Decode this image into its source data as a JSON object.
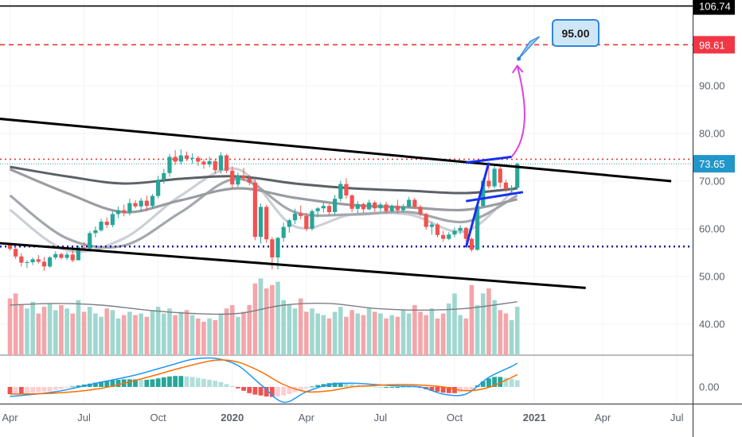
{
  "chart_data": {
    "type": "candlestick",
    "instrument_interval": "weekly",
    "price_axis": {
      "ticks": [
        "40.00",
        "50.00",
        "60.00",
        "70.00",
        "80.00",
        "90.00"
      ],
      "tick_values": [
        40,
        50,
        60,
        70,
        80,
        90
      ],
      "ylim": [
        33.5,
        108
      ]
    },
    "macd_axis": {
      "ticks": [
        "0.00"
      ]
    },
    "time_axis": {
      "labels": [
        "Apr",
        "Jul",
        "Oct",
        "2020",
        "Apr",
        "Jul",
        "Oct",
        "2021",
        "Apr",
        "Jul"
      ],
      "bold": [
        false,
        false,
        false,
        true,
        false,
        false,
        false,
        true,
        false,
        false
      ],
      "week_index": [
        0,
        13,
        26,
        39,
        52,
        65,
        78,
        92,
        104,
        117
      ]
    },
    "price_tags": [
      {
        "label": "106.74",
        "value": 106.74,
        "line_style": "solid",
        "line_color": "#000000",
        "tag_bg": "#000000",
        "tag_fg": "#ffffff"
      },
      {
        "label": "98.61",
        "value": 98.61,
        "line_style": "dashed",
        "line_color": "#e53935",
        "tag_bg": "#f23645",
        "tag_fg": "#ffffff"
      },
      {
        "label": "73.65",
        "value": 73.65,
        "line_style": "dotted-teal",
        "line_color": "#26a69a",
        "tag_bg": "#2196c8",
        "tag_fg": "#ffffff"
      }
    ],
    "levels": [
      {
        "value": 74.6,
        "style": "dotted",
        "color": "#e53935"
      },
      {
        "value": 56.3,
        "style": "dotted",
        "color": "#1a1aa8"
      }
    ],
    "target_callout": {
      "label": "95.00",
      "value": 95.0,
      "week": 89
    },
    "candles": [
      [
        56.6,
        56.8,
        55.4,
        55.8
      ],
      [
        55.8,
        56.9,
        53.7,
        54.2
      ],
      [
        54.2,
        54.9,
        52.1,
        52.9
      ],
      [
        52.9,
        53.4,
        51.8,
        53.0
      ],
      [
        53.0,
        54.0,
        52.4,
        53.6
      ],
      [
        53.6,
        54.5,
        52.7,
        53.1
      ],
      [
        53.1,
        54.1,
        51.2,
        52.1
      ],
      [
        52.1,
        54.3,
        51.8,
        54.0
      ],
      [
        54.0,
        55.3,
        53.5,
        54.7
      ],
      [
        54.7,
        55.0,
        53.6,
        53.9
      ],
      [
        53.9,
        55.1,
        53.4,
        54.6
      ],
      [
        54.6,
        55.6,
        53.0,
        53.4
      ],
      [
        53.4,
        56.5,
        53.4,
        56.1
      ],
      [
        56.1,
        57.2,
        55.4,
        55.9
      ],
      [
        55.9,
        59.5,
        55.5,
        59.1
      ],
      [
        59.1,
        60.5,
        58.2,
        59.7
      ],
      [
        59.7,
        62.1,
        59.4,
        61.5
      ],
      [
        61.5,
        62.4,
        60.2,
        60.8
      ],
      [
        60.8,
        63.6,
        60.3,
        63.1
      ],
      [
        63.1,
        64.7,
        62.2,
        63.9
      ],
      [
        63.9,
        65.1,
        62.6,
        63.4
      ],
      [
        63.4,
        66.3,
        62.8,
        65.4
      ],
      [
        65.4,
        66.0,
        64.3,
        64.7
      ],
      [
        64.7,
        66.5,
        63.6,
        65.9
      ],
      [
        65.9,
        67.0,
        63.7,
        64.8
      ],
      [
        64.8,
        67.3,
        64.3,
        66.9
      ],
      [
        66.9,
        71.1,
        66.4,
        70.3
      ],
      [
        70.3,
        72.6,
        69.5,
        71.7
      ],
      [
        71.7,
        75.7,
        70.9,
        75.1
      ],
      [
        75.1,
        76.5,
        73.4,
        74.1
      ],
      [
        74.1,
        76.7,
        73.5,
        75.4
      ],
      [
        75.4,
        76.2,
        74.2,
        74.7
      ],
      [
        74.7,
        75.8,
        73.6,
        74.9
      ],
      [
        74.9,
        75.3,
        73.2,
        74.1
      ],
      [
        74.1,
        74.6,
        72.6,
        73.5
      ],
      [
        73.5,
        75.1,
        72.9,
        74.2
      ],
      [
        74.2,
        74.6,
        71.6,
        72.3
      ],
      [
        72.3,
        76.1,
        71.6,
        75.4
      ],
      [
        75.4,
        75.7,
        71.7,
        72.2
      ],
      [
        72.2,
        73.1,
        68.5,
        69.3
      ],
      [
        69.3,
        71.8,
        68.8,
        71.2
      ],
      [
        71.2,
        72.8,
        70.1,
        70.6
      ],
      [
        70.6,
        71.3,
        69.1,
        69.7
      ],
      [
        69.7,
        70.4,
        57.6,
        58.3
      ],
      [
        58.3,
        65.3,
        56.9,
        64.6
      ],
      [
        64.6,
        65.0,
        57.1,
        57.8
      ],
      [
        57.8,
        58.3,
        51.5,
        54.0
      ],
      [
        54.0,
        58.3,
        51.5,
        58.1
      ],
      [
        58.1,
        61.3,
        57.3,
        60.4
      ],
      [
        60.4,
        62.1,
        59.2,
        61.8
      ],
      [
        61.8,
        64.2,
        61.0,
        63.2
      ],
      [
        63.2,
        64.9,
        62.0,
        62.7
      ],
      [
        62.7,
        63.3,
        59.5,
        60.0
      ],
      [
        60.0,
        64.1,
        59.6,
        63.7
      ],
      [
        63.7,
        64.6,
        62.4,
        64.3
      ],
      [
        64.3,
        65.6,
        63.4,
        64.8
      ],
      [
        64.8,
        65.2,
        62.8,
        63.5
      ],
      [
        63.5,
        67.1,
        62.9,
        66.3
      ],
      [
        66.3,
        70.1,
        65.7,
        69.4
      ],
      [
        69.4,
        70.6,
        66.3,
        67.0
      ],
      [
        67.0,
        67.3,
        63.5,
        64.2
      ],
      [
        64.2,
        65.8,
        63.2,
        65.2
      ],
      [
        65.2,
        65.5,
        63.4,
        64.1
      ],
      [
        64.1,
        66.1,
        63.9,
        65.5
      ],
      [
        65.5,
        65.9,
        63.6,
        64.3
      ],
      [
        64.3,
        65.6,
        63.6,
        65.1
      ],
      [
        65.1,
        65.7,
        63.2,
        63.7
      ],
      [
        63.7,
        65.1,
        63.5,
        64.8
      ],
      [
        64.8,
        66.1,
        63.2,
        63.9
      ],
      [
        63.9,
        65.2,
        63.4,
        64.6
      ],
      [
        64.6,
        66.7,
        64.4,
        66.1
      ],
      [
        66.1,
        66.5,
        64.2,
        64.6
      ],
      [
        64.6,
        65.0,
        62.7,
        63.1
      ],
      [
        63.1,
        63.4,
        59.8,
        60.4
      ],
      [
        60.4,
        61.5,
        58.8,
        60.9
      ],
      [
        60.9,
        61.2,
        58.2,
        58.7
      ],
      [
        58.7,
        59.6,
        57.3,
        57.9
      ],
      [
        57.9,
        59.3,
        57.6,
        58.8
      ],
      [
        58.8,
        60.3,
        58.2,
        59.6
      ],
      [
        59.6,
        60.8,
        58.9,
        60.2
      ],
      [
        60.2,
        60.4,
        57.3,
        57.9
      ],
      [
        57.9,
        58.2,
        55.2,
        55.6
      ],
      [
        55.6,
        65.4,
        55.4,
        64.8
      ],
      [
        64.8,
        70.6,
        64.6,
        70.1
      ],
      [
        70.1,
        73.9,
        68.4,
        68.9
      ],
      [
        68.9,
        73.2,
        68.5,
        72.6
      ],
      [
        72.6,
        73.1,
        68.6,
        69.7
      ],
      [
        69.7,
        70.3,
        67.7,
        68.3
      ],
      [
        68.3,
        69.2,
        67.6,
        68.6
      ],
      [
        68.6,
        73.9,
        68.2,
        73.6
      ]
    ],
    "moving_averages": [
      {
        "color": "#ccd0d6",
        "weeks": [
          0,
          10,
          20,
          30,
          40,
          50,
          60,
          70,
          80,
          89
        ],
        "values": [
          64.0,
          55.5,
          58.0,
          67.0,
          72.5,
          60.5,
          63.0,
          63.0,
          59.5,
          69.0
        ]
      },
      {
        "color": "#a4a7ad",
        "weeks": [
          0,
          10,
          20,
          30,
          40,
          50,
          60,
          70,
          80,
          89
        ],
        "values": [
          67.0,
          58.0,
          56.5,
          63.5,
          70.5,
          63.5,
          63.0,
          63.5,
          61.5,
          67.0
        ]
      },
      {
        "color": "#9a9ca1",
        "weeks": [
          0,
          10,
          20,
          30,
          40,
          50,
          60,
          70,
          80,
          89
        ],
        "values": [
          72.5,
          67.5,
          63.5,
          66.0,
          68.5,
          66.5,
          65.0,
          64.5,
          64.0,
          66.2
        ]
      },
      {
        "color": "#5d6066",
        "weeks": [
          0,
          10,
          20,
          30,
          40,
          50,
          60,
          70,
          80,
          89
        ],
        "values": [
          73.0,
          71.0,
          69.5,
          70.5,
          71.0,
          69.5,
          68.5,
          68.0,
          67.5,
          68.5
        ]
      }
    ],
    "trendlines": [
      {
        "name": "channel-top",
        "color": "#000000",
        "points": [
          [
            -2,
            83.1
          ],
          [
            116,
            70.0
          ]
        ]
      },
      {
        "name": "channel-bottom",
        "color": "#000000",
        "points": [
          [
            -2,
            57.0
          ],
          [
            101,
            47.6
          ]
        ]
      }
    ],
    "flag_pattern": {
      "color": "#1530f0",
      "pole": [
        [
          80,
          56.1
        ],
        [
          84,
          73.9
        ]
      ],
      "upper": [
        [
          80,
          73.9
        ],
        [
          88,
          75.1
        ]
      ],
      "lower": [
        [
          80,
          65.8
        ],
        [
          90,
          67.7
        ]
      ],
      "projection_color": "#e040e0",
      "projection": [
        [
          88,
          75.1
        ],
        [
          92,
          80.5
        ],
        [
          89,
          94.2
        ]
      ]
    },
    "volume": {
      "values": [
        34,
        37,
        30,
        28,
        32,
        25,
        29,
        31,
        27,
        30,
        28,
        25,
        33,
        26,
        29,
        25,
        23,
        28,
        27,
        22,
        24,
        26,
        24,
        25,
        23,
        27,
        29,
        25,
        28,
        24,
        26,
        27,
        24,
        22,
        20,
        22,
        21,
        25,
        28,
        30,
        23,
        26,
        30,
        43,
        46,
        40,
        42,
        44,
        33,
        30,
        28,
        34,
        26,
        28,
        25,
        24,
        22,
        26,
        29,
        23,
        27,
        25,
        24,
        28,
        26,
        25,
        22,
        24,
        23,
        27,
        25,
        30,
        26,
        24,
        28,
        22,
        25,
        31,
        37,
        24,
        22,
        42,
        30,
        37,
        40,
        33,
        27,
        25,
        21,
        29
      ],
      "ma_weeks": [
        0,
        8,
        16,
        24,
        32,
        40,
        48,
        56,
        64,
        72,
        80,
        89
      ],
      "ma_values": [
        30,
        31,
        30,
        27,
        25,
        25,
        30,
        31,
        28,
        27,
        28,
        32
      ]
    },
    "macd": {
      "histogram": [
        -1.5,
        -1.4,
        -1.4,
        -1.3,
        -1.2,
        -1.1,
        -1.0,
        -0.9,
        -0.6,
        -0.4,
        -0.1,
        0.1,
        0.3,
        0.5,
        0.7,
        0.9,
        1.1,
        1.3,
        1.4,
        1.5,
        1.6,
        1.6,
        1.6,
        1.5,
        1.5,
        1.6,
        1.8,
        2.0,
        2.2,
        2.3,
        2.3,
        2.2,
        2.1,
        1.9,
        1.7,
        1.5,
        1.3,
        1.0,
        0.6,
        0.2,
        -0.3,
        -0.8,
        -1.3,
        -1.6,
        -1.8,
        -2.0,
        -2.1,
        -2.0,
        -1.8,
        -1.5,
        -1.1,
        -0.7,
        -0.3,
        0.1,
        0.4,
        0.6,
        0.8,
        0.9,
        0.9,
        0.8,
        0.6,
        0.4,
        0.3,
        0.2,
        0.1,
        0.0,
        0.0,
        0.0,
        0.0,
        0.1,
        0.1,
        0.0,
        -0.2,
        -0.5,
        -0.8,
        -1.0,
        -1.2,
        -1.3,
        -1.3,
        -1.1,
        -0.9,
        -0.6,
        0.3,
        1.2,
        1.8,
        2.1,
        2.1,
        1.9,
        1.7,
        1.4
      ],
      "macd_weeks": [
        0,
        8,
        16,
        22,
        28,
        32,
        36,
        40,
        44,
        48,
        52,
        56,
        60,
        64,
        68,
        72,
        76,
        80,
        84,
        88,
        89
      ],
      "macd_values": [
        -2.0,
        -1.0,
        1.0,
        2.5,
        4.5,
        5.8,
        6.0,
        4.5,
        0.5,
        -3.2,
        -1.0,
        0.5,
        0.8,
        0.5,
        0.2,
        0.0,
        -1.5,
        -1.5,
        2.0,
        4.3,
        5.0
      ],
      "signal_weeks": [
        0,
        8,
        16,
        24,
        30,
        36,
        40,
        44,
        48,
        52,
        56,
        60,
        64,
        68,
        72,
        76,
        80,
        84,
        88,
        89
      ],
      "signal_values": [
        -1.5,
        -1.3,
        -0.3,
        2.0,
        4.0,
        5.6,
        5.2,
        3.2,
        0.5,
        -1.0,
        -0.8,
        0.0,
        0.3,
        0.5,
        0.4,
        0.0,
        -0.8,
        -0.1,
        2.0,
        2.6
      ],
      "ylim": [
        -3.5,
        6.5
      ]
    }
  }
}
